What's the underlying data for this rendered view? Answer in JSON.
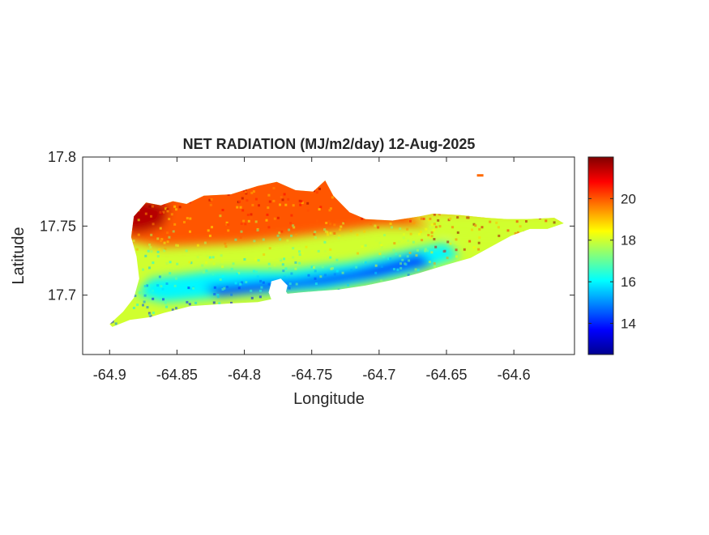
{
  "chart_data": {
    "type": "heatmap",
    "title": "NET RADIATION (MJ/m2/day) 12-Aug-2025",
    "xlabel": "Longitude",
    "ylabel": "Latitude",
    "xlim": [
      -64.92,
      -64.555
    ],
    "ylim": [
      17.657,
      17.8
    ],
    "x_ticks": [
      -64.9,
      -64.85,
      -64.8,
      -64.75,
      -64.7,
      -64.65,
      -64.6
    ],
    "x_tick_labels": [
      "-64.9",
      "-64.85",
      "-64.8",
      "-64.75",
      "-64.7",
      "-64.65",
      "-64.6"
    ],
    "y_ticks": [
      17.7,
      17.75,
      17.8
    ],
    "y_tick_labels": [
      "17.7",
      "17.75",
      "17.8"
    ],
    "colorbar": {
      "colormap": "jet",
      "range": [
        12.5,
        22
      ],
      "ticks": [
        14,
        16,
        18,
        20
      ],
      "tick_labels": [
        "14",
        "16",
        "18",
        "20"
      ]
    },
    "region_outline_lonlat": [
      [
        -64.9,
        17.679
      ],
      [
        -64.89,
        17.688
      ],
      [
        -64.882,
        17.698
      ],
      [
        -64.878,
        17.712
      ],
      [
        -64.88,
        17.728
      ],
      [
        -64.884,
        17.742
      ],
      [
        -64.882,
        17.757
      ],
      [
        -64.873,
        17.767
      ],
      [
        -64.862,
        17.765
      ],
      [
        -64.853,
        17.768
      ],
      [
        -64.843,
        17.766
      ],
      [
        -64.83,
        17.772
      ],
      [
        -64.81,
        17.773
      ],
      [
        -64.79,
        17.779
      ],
      [
        -64.776,
        17.782
      ],
      [
        -64.762,
        17.776
      ],
      [
        -64.749,
        17.775
      ],
      [
        -64.74,
        17.783
      ],
      [
        -64.734,
        17.772
      ],
      [
        -64.722,
        17.76
      ],
      [
        -64.71,
        17.755
      ],
      [
        -64.69,
        17.754
      ],
      [
        -64.67,
        17.757
      ],
      [
        -64.66,
        17.759
      ],
      [
        -64.64,
        17.758
      ],
      [
        -64.62,
        17.756
      ],
      [
        -64.605,
        17.755
      ],
      [
        -64.59,
        17.755
      ],
      [
        -64.57,
        17.756
      ],
      [
        -64.563,
        17.752
      ],
      [
        -64.575,
        17.748
      ],
      [
        -64.588,
        17.748
      ],
      [
        -64.602,
        17.743
      ],
      [
        -64.617,
        17.735
      ],
      [
        -64.632,
        17.727
      ],
      [
        -64.65,
        17.722
      ],
      [
        -64.67,
        17.716
      ],
      [
        -64.69,
        17.711
      ],
      [
        -64.71,
        17.707
      ],
      [
        -64.73,
        17.704
      ],
      [
        -64.745,
        17.703
      ],
      [
        -64.758,
        17.702
      ],
      [
        -64.768,
        17.701
      ],
      [
        -64.772,
        17.707
      ],
      [
        -64.78,
        17.709
      ],
      [
        -64.782,
        17.702
      ],
      [
        -64.78,
        17.697
      ],
      [
        -64.79,
        17.695
      ],
      [
        -64.81,
        17.694
      ],
      [
        -64.84,
        17.692
      ],
      [
        -64.86,
        17.687
      ],
      [
        -64.87,
        17.684
      ],
      [
        -64.885,
        17.682
      ],
      [
        -64.898,
        17.677
      ]
    ],
    "field_bands": [
      {
        "position": "west-north",
        "value": 21.5
      },
      {
        "position": "north",
        "value": 20
      },
      {
        "position": "central",
        "value": 18
      },
      {
        "position": "south-central",
        "value": 16
      },
      {
        "position": "south-coast",
        "value": 14
      },
      {
        "position": "east",
        "value": 18
      }
    ],
    "islet_lonlat": [
      -64.625,
      17.787
    ],
    "grid": false
  }
}
